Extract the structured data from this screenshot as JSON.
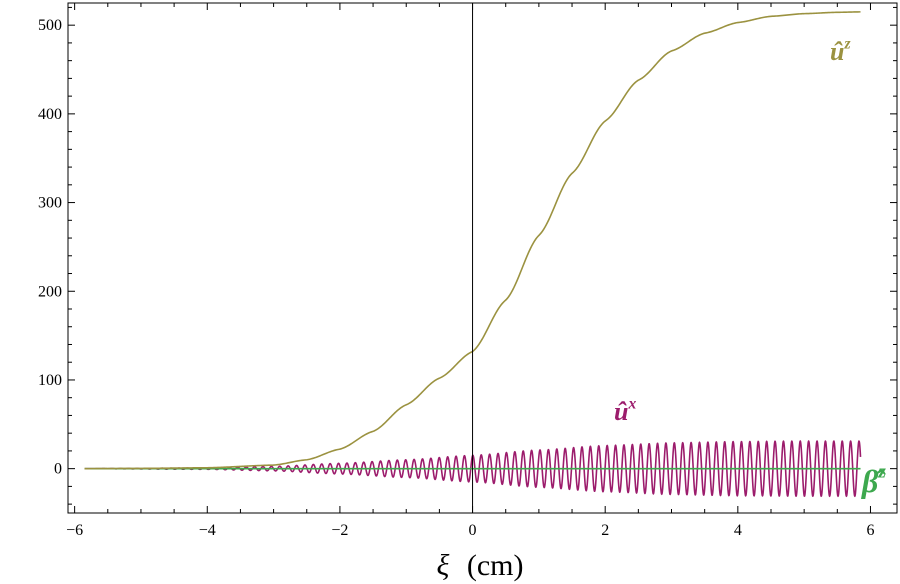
{
  "chart_data": {
    "type": "line",
    "title": "",
    "xlabel_symbol": "ξ",
    "xlabel_unit": "(cm)",
    "ylabel": "",
    "xlim": [
      -6.1,
      6.4
    ],
    "ylim": [
      -50,
      525
    ],
    "x_ticks": [
      -6,
      -4,
      -2,
      0,
      2,
      4,
      6
    ],
    "x_tick_labels": [
      "−6",
      "−4",
      "−2",
      "0",
      "2",
      "4",
      "6"
    ],
    "y_ticks": [
      0,
      100,
      200,
      300,
      400,
      500
    ],
    "y_tick_labels": [
      "0",
      "100",
      "200",
      "300",
      "400",
      "500"
    ],
    "grid": false,
    "x_range_plotted": [
      -5.85,
      5.85
    ],
    "series": [
      {
        "name_base": "û",
        "name_sup": "z",
        "color": "#9b9240",
        "x": [
          -5.85,
          -5,
          -4,
          -3,
          -2.5,
          -2,
          -1.5,
          -1,
          -0.5,
          0,
          0.5,
          1,
          1.5,
          2,
          2.5,
          3,
          3.5,
          4,
          4.5,
          5,
          5.5,
          5.85
        ],
        "values": [
          0,
          0.3,
          1,
          4,
          10,
          22,
          42,
          72,
          102,
          132,
          190,
          263,
          333,
          392,
          438,
          471,
          491,
          503,
          510,
          513,
          514.5,
          515
        ]
      },
      {
        "name_base": "û",
        "name_sup": "x",
        "color": "#9c1c6c",
        "oscillation_periods_per_cm": 7.9,
        "envelope_x": [
          -5.85,
          -4,
          -3,
          -2,
          -1,
          0,
          1,
          2,
          3,
          4,
          5,
          5.85
        ],
        "envelope_amplitude": [
          0,
          0.8,
          2.5,
          6,
          10,
          15,
          21,
          26,
          29,
          30.5,
          31,
          31
        ]
      },
      {
        "name_base": "β̂",
        "name_sup": "z",
        "color": "#3da84e",
        "x": [
          -5.85,
          5.85
        ],
        "values": [
          0,
          0
        ]
      }
    ]
  }
}
